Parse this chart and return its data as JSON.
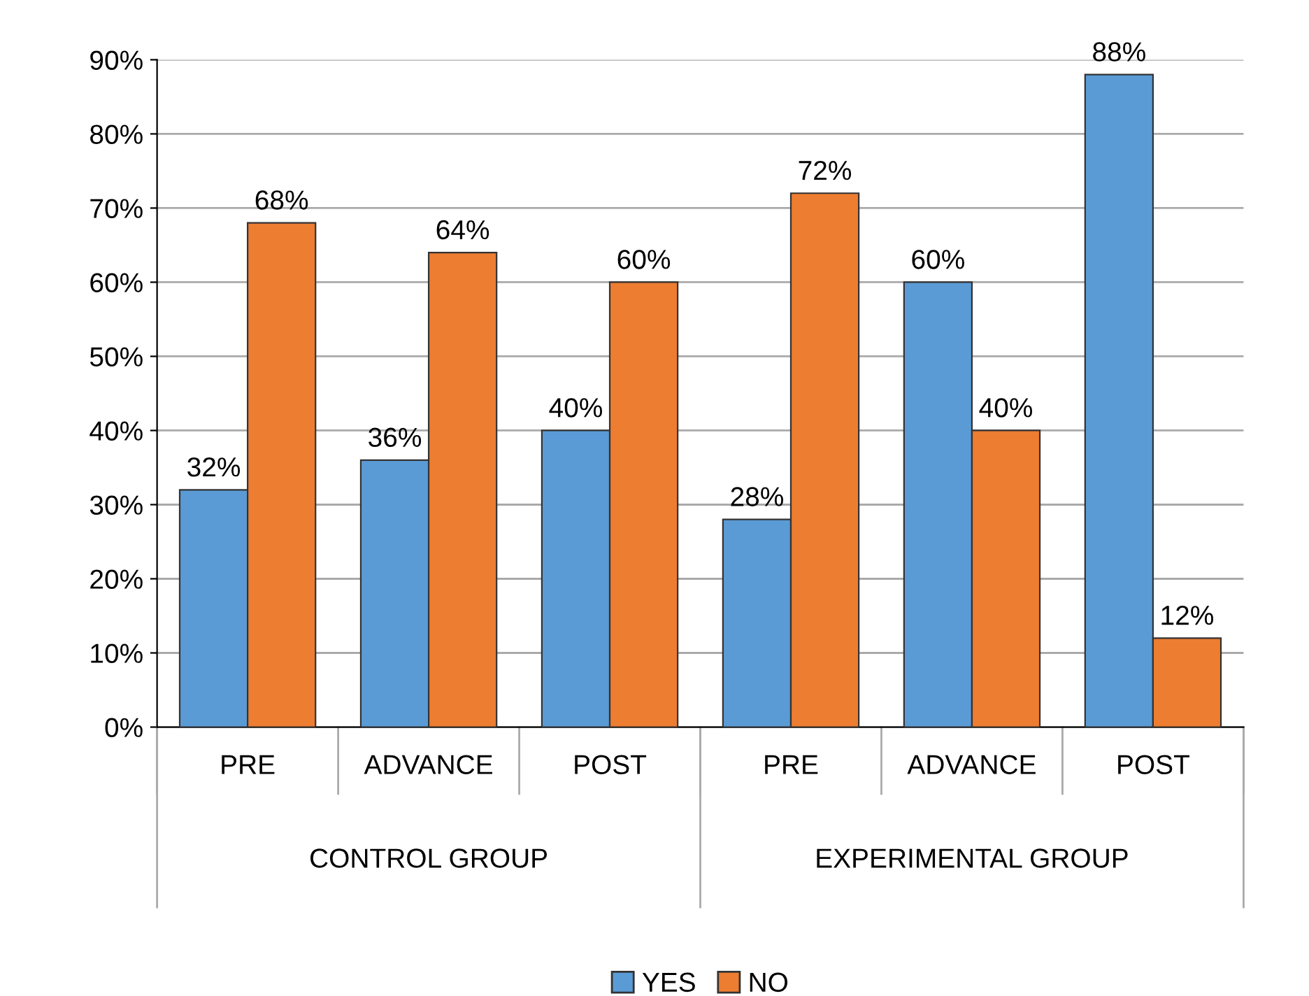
{
  "chart_data": {
    "type": "bar",
    "categories": [
      "PRE",
      "ADVANCE",
      "POST",
      "PRE",
      "ADVANCE",
      "POST"
    ],
    "series": [
      {
        "name": "YES",
        "color": "#5b9bd5",
        "values": [
          32,
          36,
          40,
          28,
          60,
          88
        ]
      },
      {
        "name": "NO",
        "color": "#ed7d31",
        "values": [
          68,
          64,
          60,
          72,
          40,
          12
        ]
      }
    ],
    "value_labels": [
      [
        "32%",
        "36%",
        "40%",
        "28%",
        "60%",
        "88%"
      ],
      [
        "68%",
        "64%",
        "60%",
        "72%",
        "40%",
        "12%"
      ]
    ],
    "ylim": [
      0,
      90
    ],
    "yticks": [
      {
        "value": 0,
        "label": "0%"
      },
      {
        "value": 10,
        "label": "10%"
      },
      {
        "value": 20,
        "label": "20%"
      },
      {
        "value": 30,
        "label": "30%"
      },
      {
        "value": 40,
        "label": "40%"
      },
      {
        "value": 50,
        "label": "50%"
      },
      {
        "value": 60,
        "label": "60%"
      },
      {
        "value": 70,
        "label": "70%"
      },
      {
        "value": 80,
        "label": "80%"
      },
      {
        "value": 90,
        "label": "90%"
      }
    ],
    "grid": "y",
    "legend": "bottom",
    "annotations": [
      "CONTROL GROUP",
      "EXPERIMENTAL GROUP"
    ]
  }
}
